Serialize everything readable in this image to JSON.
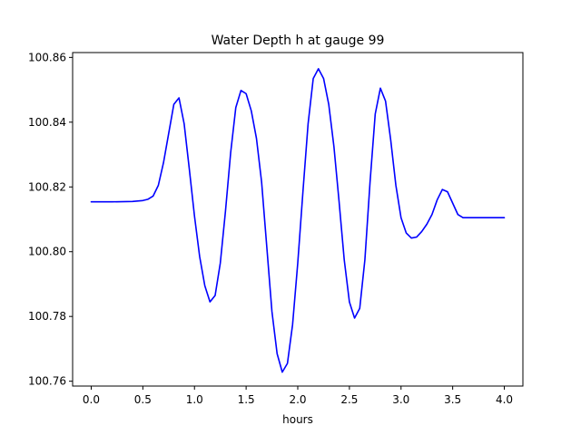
{
  "colors": {
    "background": "#ffffff",
    "axes": "#000000",
    "series": "#0000ff"
  },
  "chart_data": {
    "type": "line",
    "title": "Water Depth h at gauge 99",
    "xlabel": "hours",
    "ylabel": "",
    "xlim": [
      -0.18,
      4.18
    ],
    "ylim": [
      100.7585,
      100.8615
    ],
    "xticks": [
      0.0,
      0.5,
      1.0,
      1.5,
      2.0,
      2.5,
      3.0,
      3.5,
      4.0
    ],
    "xtick_labels": [
      "0.0",
      "0.5",
      "1.0",
      "1.5",
      "2.0",
      "2.5",
      "3.0",
      "3.5",
      "4.0"
    ],
    "yticks": [
      100.76,
      100.78,
      100.8,
      100.82,
      100.84,
      100.86
    ],
    "ytick_labels": [
      "100.76",
      "100.78",
      "100.80",
      "100.82",
      "100.84",
      "100.86"
    ],
    "grid": false,
    "legend": "none",
    "series": [
      {
        "color": "#0000ff",
        "x": [
          0.0,
          0.2,
          0.4,
          0.5,
          0.55,
          0.6,
          0.65,
          0.7,
          0.75,
          0.8,
          0.85,
          0.9,
          0.95,
          1.0,
          1.05,
          1.1,
          1.15,
          1.2,
          1.25,
          1.3,
          1.35,
          1.4,
          1.45,
          1.5,
          1.55,
          1.6,
          1.65,
          1.7,
          1.75,
          1.8,
          1.85,
          1.9,
          1.95,
          2.0,
          2.05,
          2.1,
          2.15,
          2.2,
          2.25,
          2.3,
          2.35,
          2.4,
          2.45,
          2.5,
          2.55,
          2.6,
          2.65,
          2.7,
          2.75,
          2.8,
          2.85,
          2.9,
          2.95,
          3.0,
          3.05,
          3.1,
          3.15,
          3.2,
          3.25,
          3.3,
          3.35,
          3.4,
          3.45,
          3.5,
          3.55,
          3.6,
          3.65,
          3.7,
          3.75,
          3.8,
          3.85,
          3.9,
          3.95,
          4.0
        ],
        "y": [
          100.8154,
          100.8154,
          100.8155,
          100.8158,
          100.8162,
          100.8172,
          100.8205,
          100.8275,
          100.8365,
          100.8455,
          100.8475,
          100.8395,
          100.8255,
          100.811,
          100.7985,
          100.7895,
          100.7845,
          100.7865,
          100.7965,
          100.8125,
          100.8305,
          100.8445,
          100.8498,
          100.8488,
          100.8435,
          100.835,
          100.8215,
          100.8015,
          100.7815,
          100.7685,
          100.7628,
          100.7655,
          100.7775,
          100.7965,
          100.8185,
          100.8395,
          100.8535,
          100.8565,
          100.8535,
          100.8455,
          100.8325,
          100.8155,
          100.7975,
          100.7845,
          100.7795,
          100.7825,
          100.7975,
          100.8215,
          100.8425,
          100.8505,
          100.8465,
          100.8345,
          100.8205,
          100.8105,
          100.8058,
          100.8042,
          100.8045,
          100.8062,
          100.8085,
          100.8115,
          100.816,
          100.8192,
          100.8185,
          100.815,
          100.8115,
          100.8105,
          100.8105,
          100.8105,
          100.8105,
          100.8105,
          100.8105,
          100.8105,
          100.8105,
          100.8105
        ]
      }
    ]
  }
}
